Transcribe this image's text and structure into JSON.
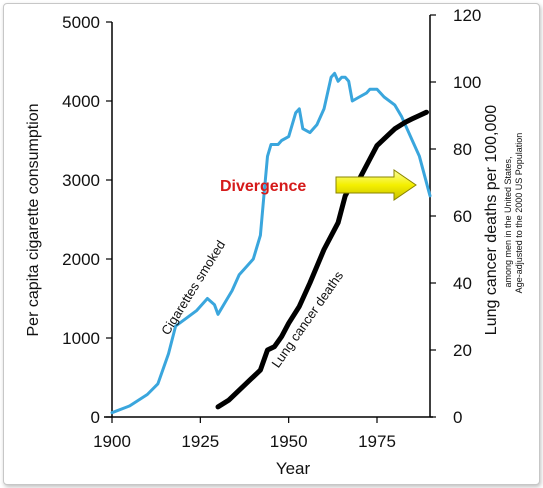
{
  "chart_data": {
    "type": "line",
    "xlabel": "Year",
    "ylabel_left": "Per capita cigarette consumption",
    "ylabel_right": "Lung cancer deaths per 100,000",
    "ylabel_right_sub1": "among men in the United States,",
    "ylabel_right_sub2": "Age-adjusted to the 2000 US Population",
    "xlim": [
      1900,
      1990
    ],
    "ylim_left": [
      0,
      5000
    ],
    "ylim_right": [
      0,
      120
    ],
    "x_ticks": [
      "1900",
      "1925",
      "1950",
      "1975"
    ],
    "y_left_ticks": [
      "0",
      "1000",
      "2000",
      "3000",
      "4000",
      "5000"
    ],
    "y_right_ticks": [
      "0",
      "20",
      "40",
      "60",
      "80",
      "100",
      "120"
    ],
    "annotation": "Divergence",
    "series": [
      {
        "name": "Cigarettes smoked",
        "axis": "left",
        "color": "#3aa6dd",
        "x": [
          1900,
          1905,
          1910,
          1913,
          1916,
          1918,
          1921,
          1924,
          1927,
          1929,
          1930,
          1932,
          1934,
          1936,
          1937,
          1938,
          1940,
          1942,
          1943,
          1944,
          1945,
          1947,
          1948,
          1950,
          1952,
          1953,
          1954,
          1956,
          1958,
          1960,
          1962,
          1963,
          1964,
          1965,
          1966,
          1967,
          1968,
          1970,
          1972,
          1973,
          1975,
          1977,
          1980,
          1982,
          1985,
          1987,
          1990
        ],
        "values": [
          54,
          140,
          285,
          420,
          800,
          1150,
          1250,
          1350,
          1500,
          1420,
          1300,
          1450,
          1600,
          1800,
          1850,
          1900,
          2000,
          2300,
          2800,
          3300,
          3450,
          3450,
          3500,
          3550,
          3850,
          3900,
          3650,
          3600,
          3700,
          3900,
          4300,
          4350,
          4250,
          4300,
          4300,
          4250,
          4000,
          4050,
          4100,
          4150,
          4150,
          4050,
          3950,
          3800,
          3500,
          3300,
          2800
        ]
      },
      {
        "name": "Lung cancer deaths",
        "axis": "right",
        "color": "#000000",
        "x": [
          1930,
          1933,
          1936,
          1939,
          1942,
          1944,
          1946,
          1948,
          1950,
          1953,
          1956,
          1960,
          1964,
          1966,
          1968,
          1970,
          1973,
          1975,
          1978,
          1980,
          1983,
          1985,
          1987,
          1989
        ],
        "values": [
          3,
          5,
          8,
          11,
          14,
          20,
          21,
          24,
          28,
          33,
          40,
          50,
          58,
          66,
          70,
          71,
          77,
          81,
          84,
          86,
          88,
          89,
          90,
          91
        ]
      }
    ]
  }
}
